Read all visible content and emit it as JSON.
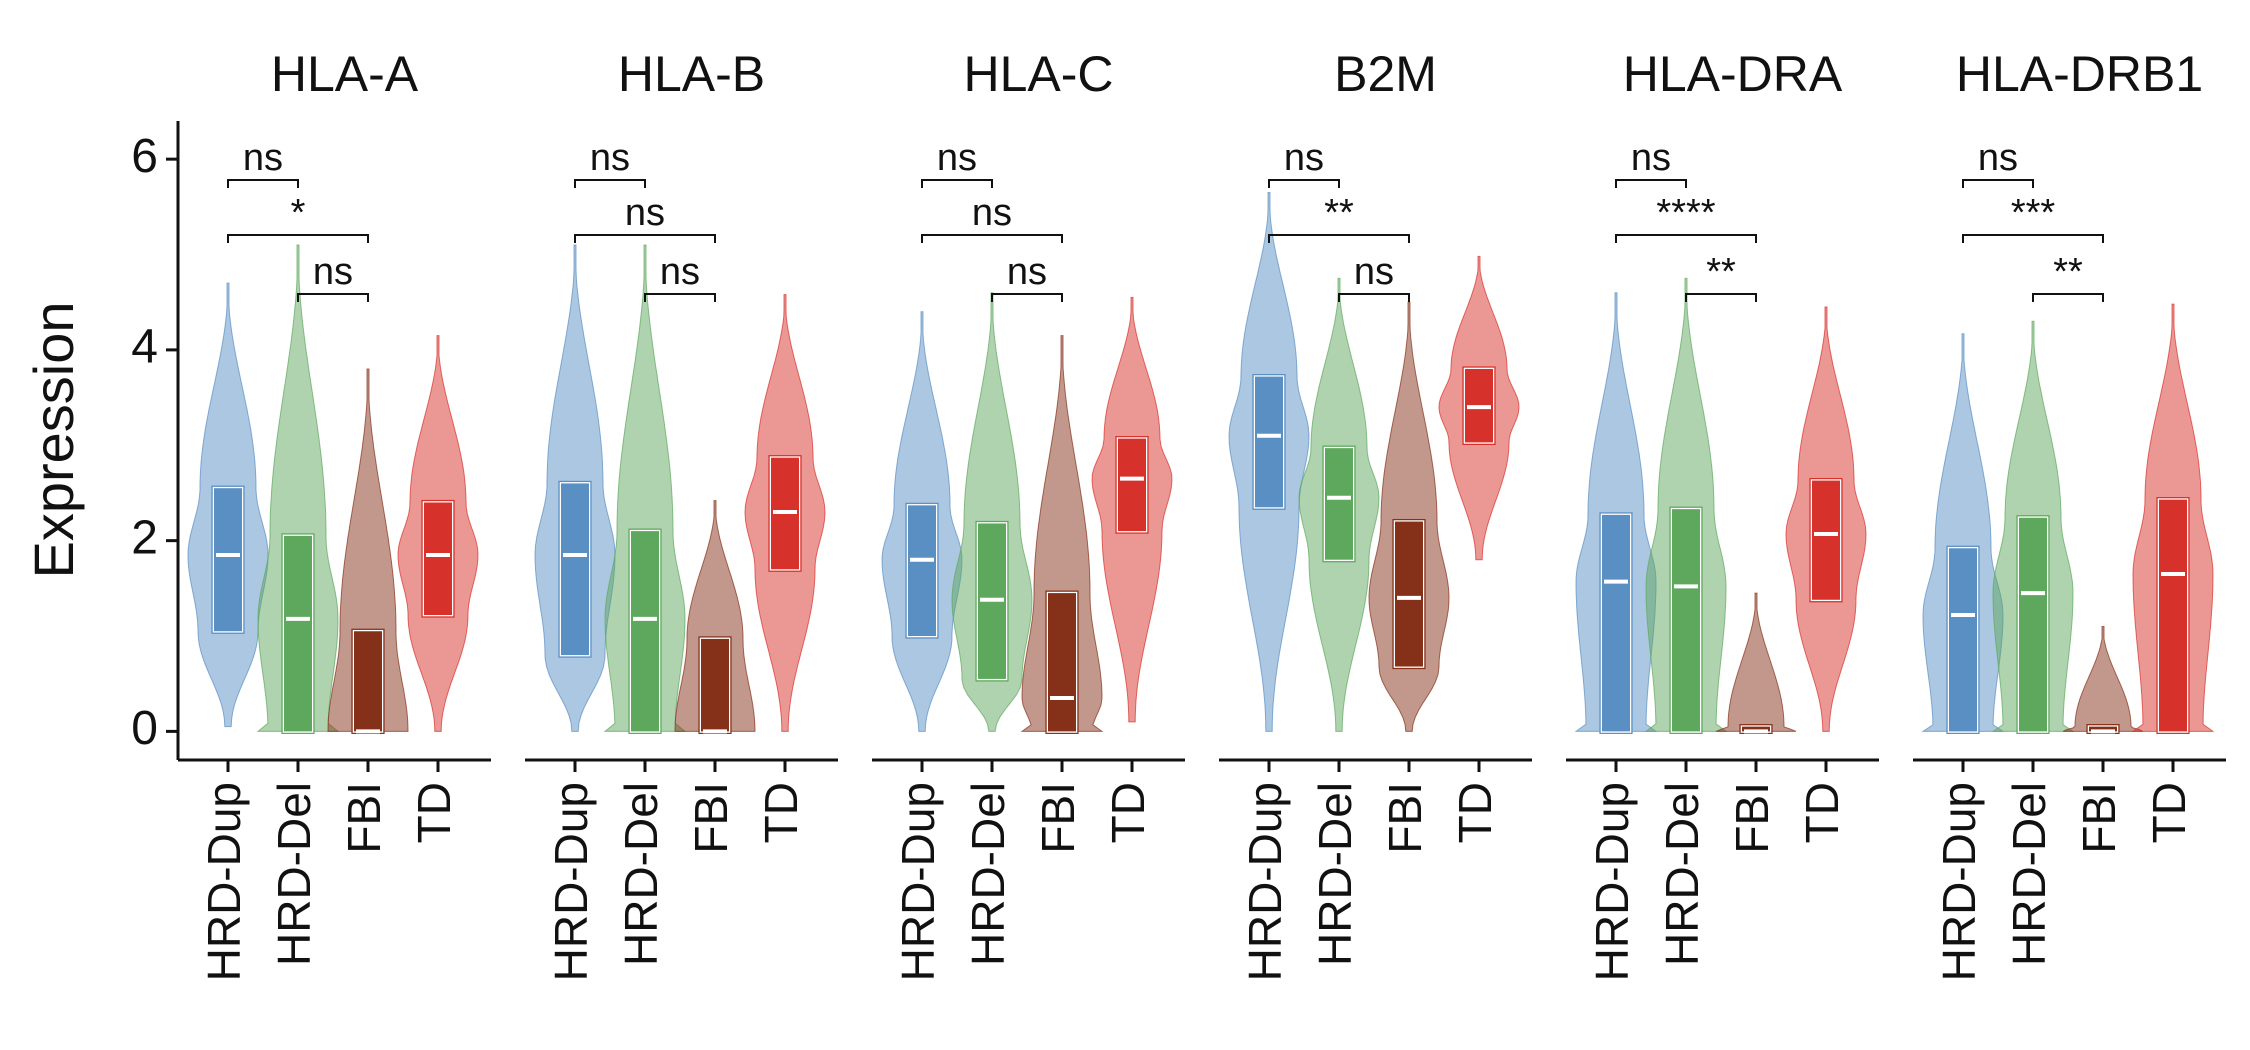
{
  "chart_data": {
    "type": "violin",
    "y_label": "Expression",
    "ylim": [
      -0.3,
      6.4
    ],
    "yticks": [
      0,
      2,
      4,
      6
    ],
    "categories": [
      "HRD-Dup",
      "HRD-Del",
      "FBI",
      "TD"
    ],
    "colors": [
      "#5a8fc3",
      "#5ea85e",
      "#85311a",
      "#d7312b"
    ],
    "panels": [
      {
        "title": "HLA-A",
        "min": [
          0.05,
          0,
          0,
          0
        ],
        "q1": [
          1.05,
          0,
          0,
          1.22
        ],
        "median": [
          1.85,
          1.18,
          0,
          1.85
        ],
        "q3": [
          2.55,
          2.05,
          1.05,
          2.4
        ],
        "max": [
          4.7,
          5.1,
          3.8,
          4.15
        ],
        "comparisons": [
          {
            "groups": [
              "HRD-Dup",
              "HRD-Del"
            ],
            "label": "ns"
          },
          {
            "groups": [
              "HRD-Dup",
              "FBI"
            ],
            "label": "*"
          },
          {
            "groups": [
              "HRD-Del",
              "FBI"
            ],
            "label": "ns"
          }
        ]
      },
      {
        "title": "HLA-B",
        "min": [
          0,
          0,
          0,
          0
        ],
        "q1": [
          0.8,
          0,
          0,
          1.7
        ],
        "median": [
          1.85,
          1.18,
          0,
          2.3
        ],
        "q3": [
          2.6,
          2.1,
          0.97,
          2.87
        ],
        "max": [
          5.1,
          5.1,
          2.42,
          4.58
        ],
        "comparisons": [
          {
            "groups": [
              "HRD-Dup",
              "HRD-Del"
            ],
            "label": "ns"
          },
          {
            "groups": [
              "HRD-Dup",
              "FBI"
            ],
            "label": "ns"
          },
          {
            "groups": [
              "HRD-Del",
              "FBI"
            ],
            "label": "ns"
          }
        ]
      },
      {
        "title": "HLA-C",
        "min": [
          0,
          0,
          0,
          0.1
        ],
        "q1": [
          1.0,
          0.55,
          0,
          2.1
        ],
        "median": [
          1.8,
          1.38,
          0.35,
          2.65
        ],
        "q3": [
          2.37,
          2.18,
          1.45,
          3.07
        ],
        "max": [
          4.4,
          4.6,
          4.15,
          4.55
        ],
        "comparisons": [
          {
            "groups": [
              "HRD-Dup",
              "HRD-Del"
            ],
            "label": "ns"
          },
          {
            "groups": [
              "HRD-Dup",
              "FBI"
            ],
            "label": "ns"
          },
          {
            "groups": [
              "HRD-Del",
              "FBI"
            ],
            "label": "ns"
          }
        ]
      },
      {
        "title": "B2M",
        "min": [
          0,
          0,
          0,
          1.8
        ],
        "q1": [
          2.35,
          1.8,
          0.68,
          3.03
        ],
        "median": [
          3.1,
          2.45,
          1.4,
          3.4
        ],
        "q3": [
          3.72,
          2.97,
          2.2,
          3.8
        ],
        "max": [
          5.65,
          4.75,
          4.5,
          4.98
        ],
        "comparisons": [
          {
            "groups": [
              "HRD-Dup",
              "HRD-Del"
            ],
            "label": "ns"
          },
          {
            "groups": [
              "HRD-Dup",
              "FBI"
            ],
            "label": "**"
          },
          {
            "groups": [
              "HRD-Del",
              "FBI"
            ],
            "label": "ns"
          }
        ]
      },
      {
        "title": "HLA-DRA",
        "min": [
          0,
          0,
          0,
          0
        ],
        "q1": [
          0,
          0,
          0,
          1.38
        ],
        "median": [
          1.57,
          1.52,
          0,
          2.07
        ],
        "q3": [
          2.27,
          2.33,
          0.05,
          2.63
        ],
        "max": [
          4.6,
          4.75,
          1.45,
          4.45
        ],
        "comparisons": [
          {
            "groups": [
              "HRD-Dup",
              "HRD-Del"
            ],
            "label": "ns"
          },
          {
            "groups": [
              "HRD-Dup",
              "FBI"
            ],
            "label": "****"
          },
          {
            "groups": [
              "HRD-Del",
              "FBI"
            ],
            "label": "**"
          }
        ]
      },
      {
        "title": "HLA-DRB1",
        "min": [
          0,
          0,
          0,
          0
        ],
        "q1": [
          0,
          0,
          0,
          0
        ],
        "median": [
          1.22,
          1.45,
          0,
          1.65
        ],
        "q3": [
          1.92,
          2.24,
          0.05,
          2.43
        ],
        "max": [
          4.17,
          4.3,
          1.1,
          4.48
        ],
        "comparisons": [
          {
            "groups": [
              "HRD-Dup",
              "HRD-Del"
            ],
            "label": "ns"
          },
          {
            "groups": [
              "HRD-Dup",
              "FBI"
            ],
            "label": "***"
          },
          {
            "groups": [
              "HRD-Del",
              "FBI"
            ],
            "label": "**"
          }
        ]
      }
    ]
  }
}
